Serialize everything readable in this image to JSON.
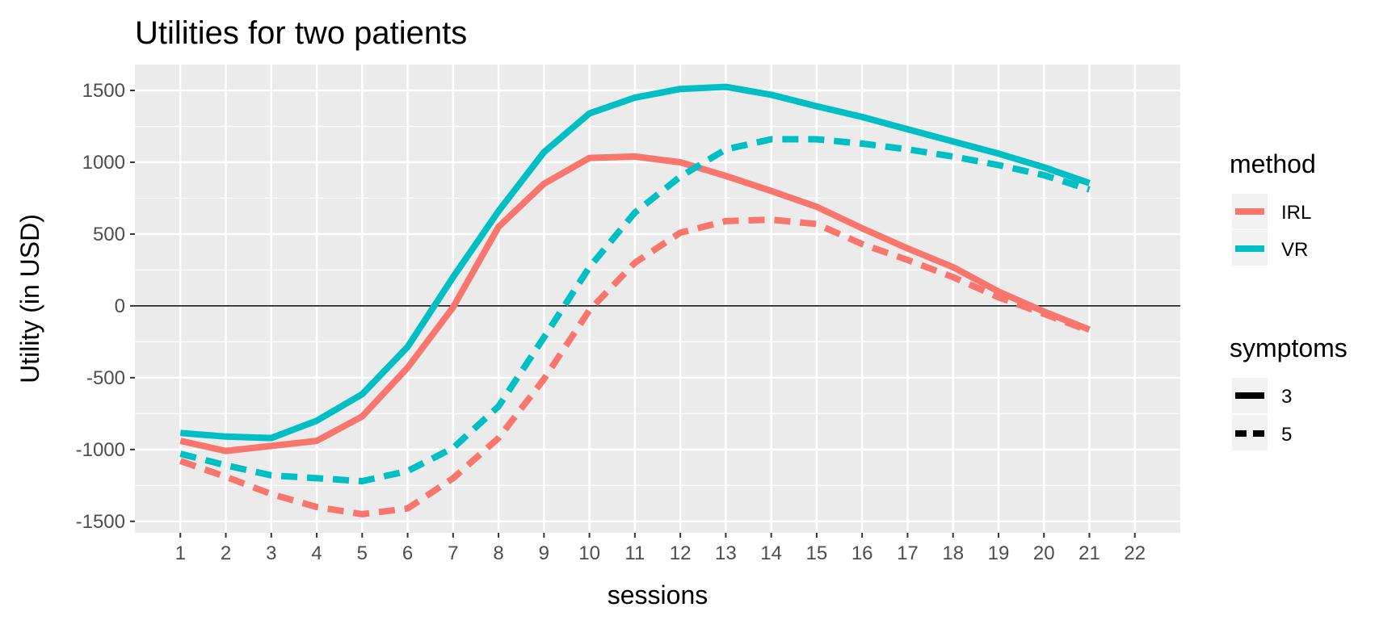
{
  "chart_data": {
    "type": "line",
    "title": "Utilities for two patients",
    "xlabel": "sessions",
    "ylabel": "Utility (in USD)",
    "x": [
      1,
      2,
      3,
      4,
      5,
      6,
      7,
      8,
      9,
      10,
      11,
      12,
      13,
      14,
      15,
      16,
      17,
      18,
      19,
      20,
      21
    ],
    "xticks": [
      1,
      2,
      3,
      4,
      5,
      6,
      7,
      8,
      9,
      10,
      11,
      12,
      13,
      14,
      15,
      16,
      17,
      18,
      19,
      20,
      21,
      22
    ],
    "yticks": [
      -1500,
      -1000,
      -500,
      0,
      500,
      1000,
      1500
    ],
    "xlim": [
      0,
      23
    ],
    "ylim": [
      -1580,
      1680
    ],
    "hline": 0,
    "grid": true,
    "legend_position": "right",
    "series": [
      {
        "method": "IRL",
        "symptoms": "3",
        "values": [
          -940,
          -1010,
          -975,
          -940,
          -770,
          -430,
          -10,
          550,
          850,
          1030,
          1040,
          1000,
          905,
          800,
          690,
          540,
          400,
          270,
          100,
          -40,
          -165
        ]
      },
      {
        "method": "IRL",
        "symptoms": "5",
        "values": [
          -1080,
          -1190,
          -1310,
          -1400,
          -1450,
          -1410,
          -1200,
          -920,
          -510,
          -30,
          300,
          510,
          590,
          600,
          570,
          430,
          320,
          200,
          60,
          -55,
          -175
        ]
      },
      {
        "method": "VR",
        "symptoms": "3",
        "values": [
          -885,
          -910,
          -920,
          -800,
          -615,
          -285,
          200,
          660,
          1070,
          1340,
          1450,
          1510,
          1525,
          1470,
          1390,
          1315,
          1230,
          1145,
          1060,
          965,
          855
        ]
      },
      {
        "method": "VR",
        "symptoms": "5",
        "values": [
          -1030,
          -1110,
          -1180,
          -1200,
          -1220,
          -1150,
          -990,
          -700,
          -220,
          270,
          650,
          900,
          1090,
          1160,
          1160,
          1130,
          1090,
          1040,
          980,
          910,
          810
        ]
      }
    ],
    "legend": {
      "method": {
        "title": "method",
        "items": [
          "IRL",
          "VR"
        ]
      },
      "symptoms": {
        "title": "symptoms",
        "items": [
          "3",
          "5"
        ]
      }
    },
    "colors": {
      "IRL": "#F8766D",
      "VR": "#00BFC4",
      "panel": "#EBEBEB",
      "grid": "#FFFFFF",
      "text": "#4D4D4D"
    }
  }
}
